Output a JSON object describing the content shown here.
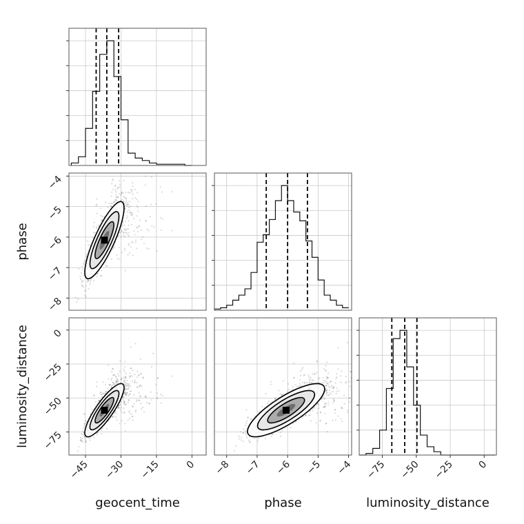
{
  "chart_data": {
    "type": "corner",
    "parameters": [
      "geocent_time",
      "phase",
      "luminosity_distance"
    ],
    "axis_labels": {
      "geocent_time": "geocent_time",
      "phase": "phase",
      "luminosity_distance": "luminosity_distance"
    },
    "ranges": {
      "geocent_time": [
        -52,
        6
      ],
      "phase": [
        -8.4,
        -3.9
      ],
      "luminosity_distance": [
        -92,
        9
      ]
    },
    "ticks": {
      "geocent_time": [
        -45,
        -30,
        -15,
        0
      ],
      "phase": [
        -8,
        -7,
        -6,
        -5,
        -4
      ],
      "luminosity_distance": [
        -75,
        -50,
        -25,
        0
      ]
    },
    "tick_labels": {
      "geocent_time": [
        "−45",
        "−30",
        "−15",
        "0"
      ],
      "phase": [
        "−8",
        "−7",
        "−6",
        "−5",
        "−4"
      ],
      "luminosity_distance": [
        "−75",
        "−50",
        "−25",
        "0"
      ]
    },
    "quantiles": {
      "geocent_time": [
        -40.5,
        -36.0,
        -31.0
      ],
      "phase": [
        -6.7,
        -6.0,
        -5.35
      ],
      "luminosity_distance": [
        -68.0,
        -58.5,
        -49.5
      ]
    },
    "histograms": {
      "geocent_time": {
        "edges": [
          -51,
          -48,
          -45,
          -42,
          -39,
          -36,
          -33,
          -30,
          -27,
          -24,
          -21,
          -18,
          -15,
          -12,
          -9,
          -6,
          -3,
          0
        ],
        "counts": [
          2,
          7,
          30,
          60,
          90,
          101,
          72,
          37,
          10,
          6,
          4,
          2,
          1,
          1,
          1,
          1,
          0
        ]
      },
      "phase": {
        "edges": [
          -8.4,
          -8.2,
          -8.0,
          -7.8,
          -7.6,
          -7.4,
          -7.2,
          -7.0,
          -6.8,
          -6.6,
          -6.4,
          -6.2,
          -6.0,
          -5.8,
          -5.6,
          -5.4,
          -5.2,
          -5.0,
          -4.8,
          -4.6,
          -4.4,
          -4.2,
          -4.0
        ],
        "counts": [
          1,
          2,
          4,
          8,
          12,
          17,
          30,
          54,
          60,
          72,
          87,
          99,
          87,
          78,
          71,
          55,
          42,
          24,
          12,
          8,
          4,
          2
        ]
      },
      "luminosity_distance": {
        "edges": [
          -92,
          -87,
          -82,
          -77,
          -72,
          -67,
          -62,
          -57,
          -52,
          -47,
          -42,
          -37,
          -32,
          -27,
          -22,
          -17,
          -12,
          -7,
          -2,
          3,
          8
        ],
        "counts": [
          0,
          1,
          4,
          15,
          40,
          70,
          75,
          53,
          30,
          12,
          5,
          2,
          0,
          0,
          0,
          0,
          0,
          0,
          0,
          0
        ]
      }
    },
    "pairs": [
      {
        "x": "geocent_time",
        "y": "phase",
        "mean": [
          -37,
          -6.1
        ],
        "sd": [
          3.6,
          0.55
        ],
        "corr": 0.83
      },
      {
        "x": "geocent_time",
        "y": "luminosity_distance",
        "mean": [
          -37,
          -59
        ],
        "sd": [
          3.6,
          8.5
        ],
        "corr": 0.85
      },
      {
        "x": "phase",
        "y": "luminosity_distance",
        "mean": [
          -6.05,
          -59
        ],
        "sd": [
          0.55,
          8.5
        ],
        "corr": 0.8
      }
    ],
    "grid": true
  }
}
